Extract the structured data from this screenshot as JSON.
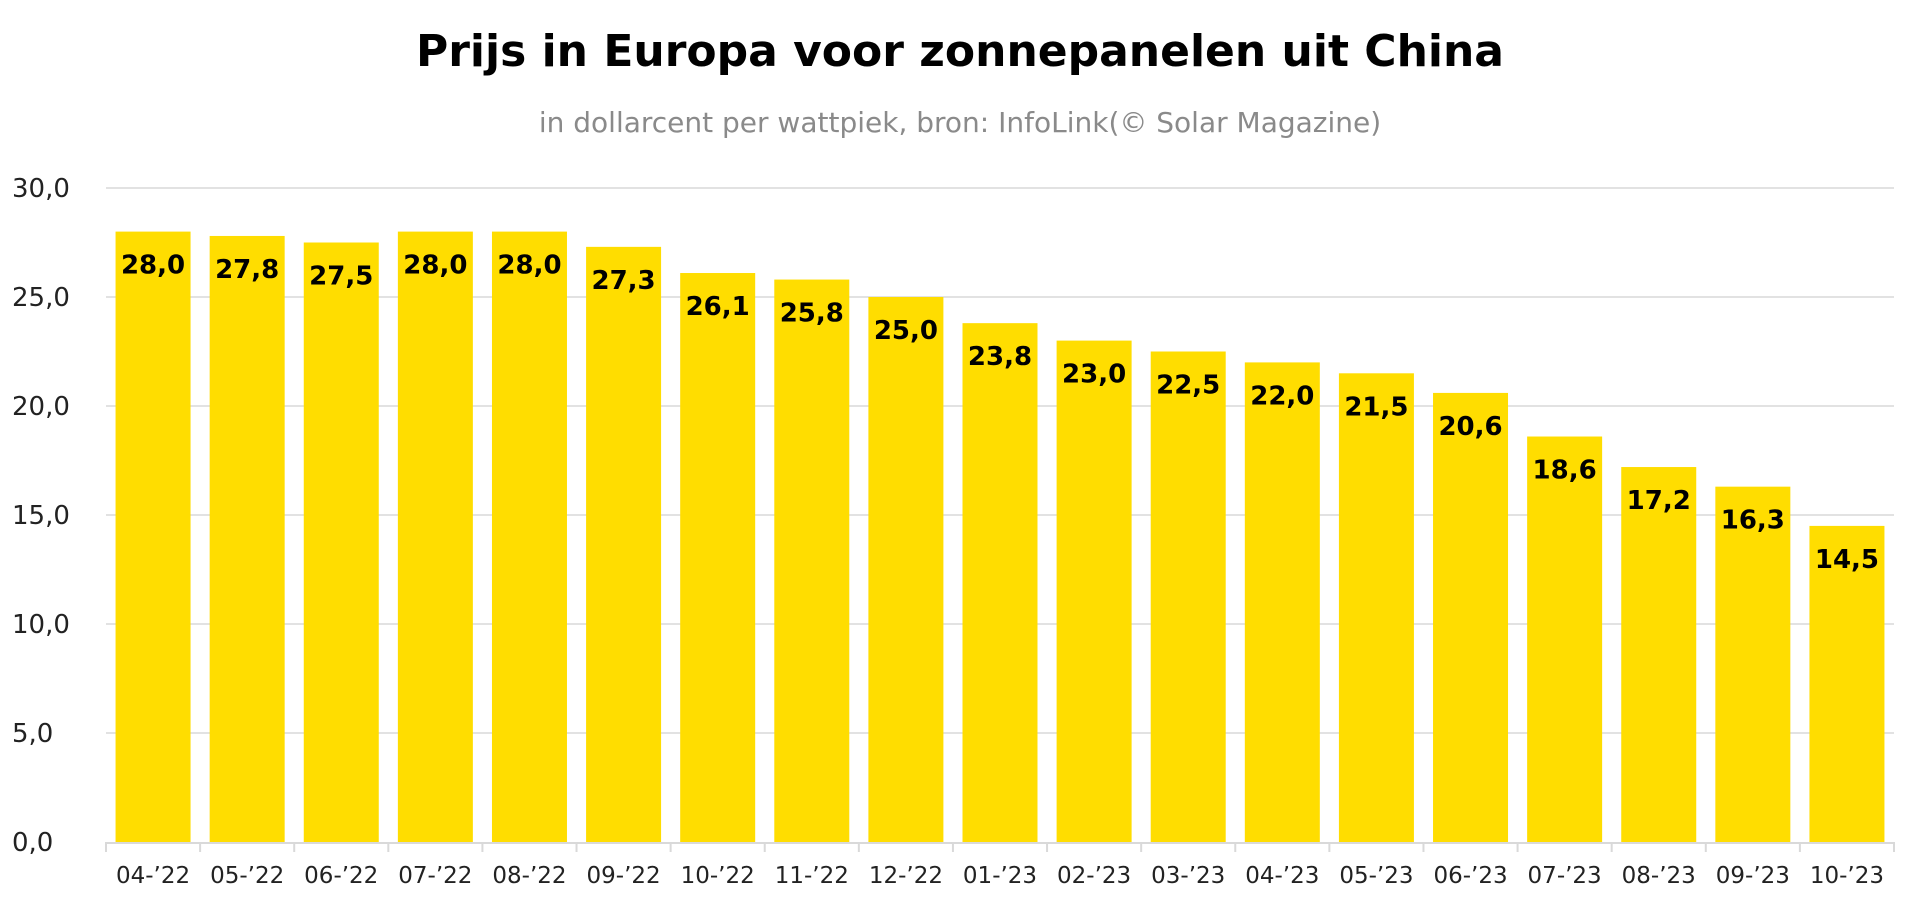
{
  "chart_data": {
    "type": "bar",
    "title": "Prijs in Europa voor zonnepanelen uit China",
    "subtitle": "in dollarcent per wattpiek, bron: InfoLink(© Solar Magazine)",
    "xlabel": "",
    "ylabel": "",
    "ylim": [
      0,
      30
    ],
    "yticks": [
      "0,0",
      "5,0",
      "10,0",
      "15,0",
      "20,0",
      "25,0",
      "30,0"
    ],
    "grid": true,
    "categories": [
      "04-’22",
      "05-’22",
      "06-’22",
      "07-’22",
      "08-’22",
      "09-’22",
      "10-’22",
      "11-’22",
      "12-’22",
      "01-’23",
      "02-’23",
      "03-’23",
      "04-’23",
      "05-’23",
      "06-’23",
      "07-’23",
      "08-’23",
      "09-’23",
      "10-’23"
    ],
    "values": [
      28.0,
      27.8,
      27.5,
      28.0,
      28.0,
      27.3,
      26.1,
      25.8,
      25.0,
      23.8,
      23.0,
      22.5,
      22.0,
      21.5,
      20.6,
      18.6,
      17.2,
      16.3,
      14.5
    ],
    "data_labels": [
      "28,0",
      "27,8",
      "27,5",
      "28,0",
      "28,0",
      "27,3",
      "26,1",
      "25,8",
      "25,0",
      "23,8",
      "23,0",
      "22,5",
      "22,0",
      "21,5",
      "20,6",
      "18,6",
      "17,2",
      "16,3",
      "14,5"
    ],
    "bar_color": "#FFDD00",
    "grid_color": "#D9D9D9"
  }
}
